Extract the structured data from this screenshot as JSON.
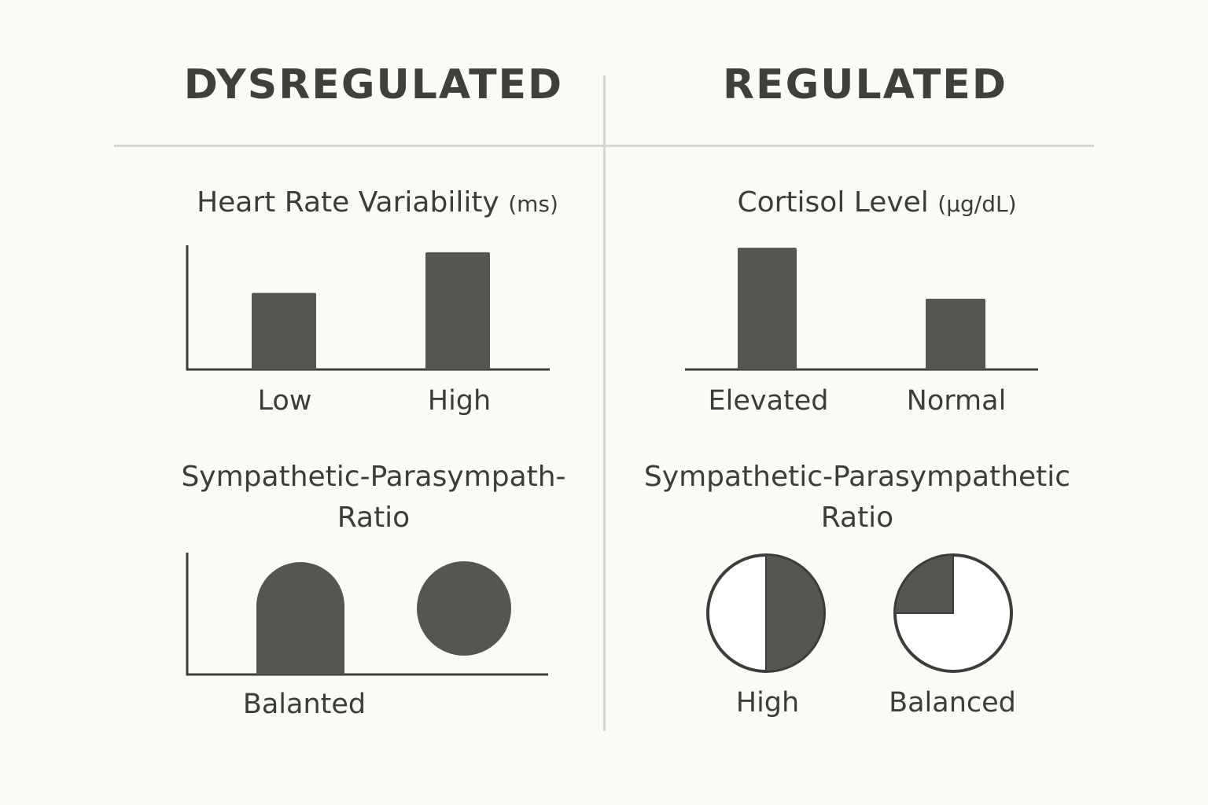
{
  "columns": {
    "left": {
      "heading": "DYSREGULATED"
    },
    "right": {
      "heading": "REGULATED"
    }
  },
  "colors": {
    "bar": "#555651",
    "axis": "#3c3d3a",
    "background": "#fbfaf4",
    "divider": "#d6d6d2"
  },
  "chart_data": [
    {
      "type": "bar",
      "title": "Heart Rate Variability",
      "unit": "(ms)",
      "categories": [
        "Low",
        "High"
      ],
      "values": [
        0.62,
        0.95
      ],
      "ylim": [
        0,
        1
      ]
    },
    {
      "type": "bar",
      "title": "Cortisol Level",
      "unit": "(µg/dL)",
      "categories": [
        "Elevated",
        "Normal"
      ],
      "values": [
        0.98,
        0.57
      ],
      "ylim": [
        0,
        1
      ]
    },
    {
      "type": "other",
      "title_line1": "Sympathetic-Parasympath-",
      "title_line2": "Ratio",
      "categories": [
        "Balanted"
      ]
    },
    {
      "type": "pie",
      "title_line1": "Sympathetic-Parasympathetic",
      "title_line2": "Ratio",
      "categories": [
        "High",
        "Balanced"
      ],
      "values": [
        0.5,
        0.25
      ]
    }
  ]
}
